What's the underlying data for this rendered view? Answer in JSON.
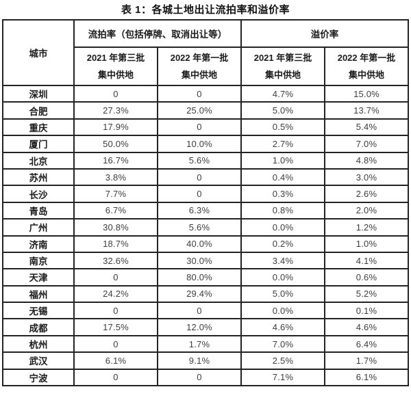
{
  "title": "表 1：各城土地出让流拍率和溢价率",
  "table": {
    "corner_header": "城市",
    "group_headers": [
      {
        "label": "流拍率（包括停牌、取消出让等）"
      },
      {
        "label": "溢价率"
      }
    ],
    "sub_headers": [
      {
        "line1": "2021 年第三批",
        "line2": "集中供地"
      },
      {
        "line1": "2022 年第一批",
        "line2": "集中供地"
      },
      {
        "line1": "2021 年第三批",
        "line2": "集中供地"
      },
      {
        "line1": "2022 年第一批",
        "line2": "集中供地"
      }
    ],
    "rows": [
      {
        "city": "深圳",
        "values": [
          "0",
          "0",
          "4.7%",
          "15.0%"
        ]
      },
      {
        "city": "合肥",
        "values": [
          "27.3%",
          "25.0%",
          "5.0%",
          "13.7%"
        ]
      },
      {
        "city": "重庆",
        "values": [
          "17.9%",
          "0",
          "0.5%",
          "5.4%"
        ]
      },
      {
        "city": "厦门",
        "values": [
          "50.0%",
          "10.0%",
          "2.7%",
          "7.0%"
        ]
      },
      {
        "city": "北京",
        "values": [
          "16.7%",
          "5.6%",
          "1.0%",
          "4.8%"
        ]
      },
      {
        "city": "苏州",
        "values": [
          "3.8%",
          "0",
          "0.4%",
          "3.0%"
        ]
      },
      {
        "city": "长沙",
        "values": [
          "7.7%",
          "0",
          "0.3%",
          "2.6%"
        ]
      },
      {
        "city": "青岛",
        "values": [
          "6.7%",
          "6.3%",
          "0.8%",
          "2.0%"
        ]
      },
      {
        "city": "广州",
        "values": [
          "30.8%",
          "5.6%",
          "0.0%",
          "1.2%"
        ]
      },
      {
        "city": "济南",
        "values": [
          "18.7%",
          "40.0%",
          "0.2%",
          "1.0%"
        ]
      },
      {
        "city": "南京",
        "values": [
          "32.6%",
          "30.0%",
          "3.4%",
          "4.1%"
        ]
      },
      {
        "city": "天津",
        "values": [
          "0",
          "80.0%",
          "0.0%",
          "0.6%"
        ]
      },
      {
        "city": "福州",
        "values": [
          "24.2%",
          "29.4%",
          "5.0%",
          "5.2%"
        ]
      },
      {
        "city": "无锡",
        "values": [
          "0",
          "0",
          "0.0%",
          "0.1%"
        ]
      },
      {
        "city": "成都",
        "values": [
          "17.5%",
          "12.0%",
          "4.6%",
          "4.6%"
        ]
      },
      {
        "city": "杭州",
        "values": [
          "0",
          "1.7%",
          "7.0%",
          "6.4%"
        ]
      },
      {
        "city": "武汉",
        "values": [
          "6.1%",
          "9.1%",
          "2.5%",
          "1.7%"
        ]
      },
      {
        "city": "宁波",
        "values": [
          "0",
          "0",
          "7.1%",
          "6.1%"
        ]
      }
    ]
  },
  "colors": {
    "border": "#222222",
    "header_text": "#1a1a1a",
    "value_text": "#3d3d3d",
    "background": "#ffffff"
  }
}
